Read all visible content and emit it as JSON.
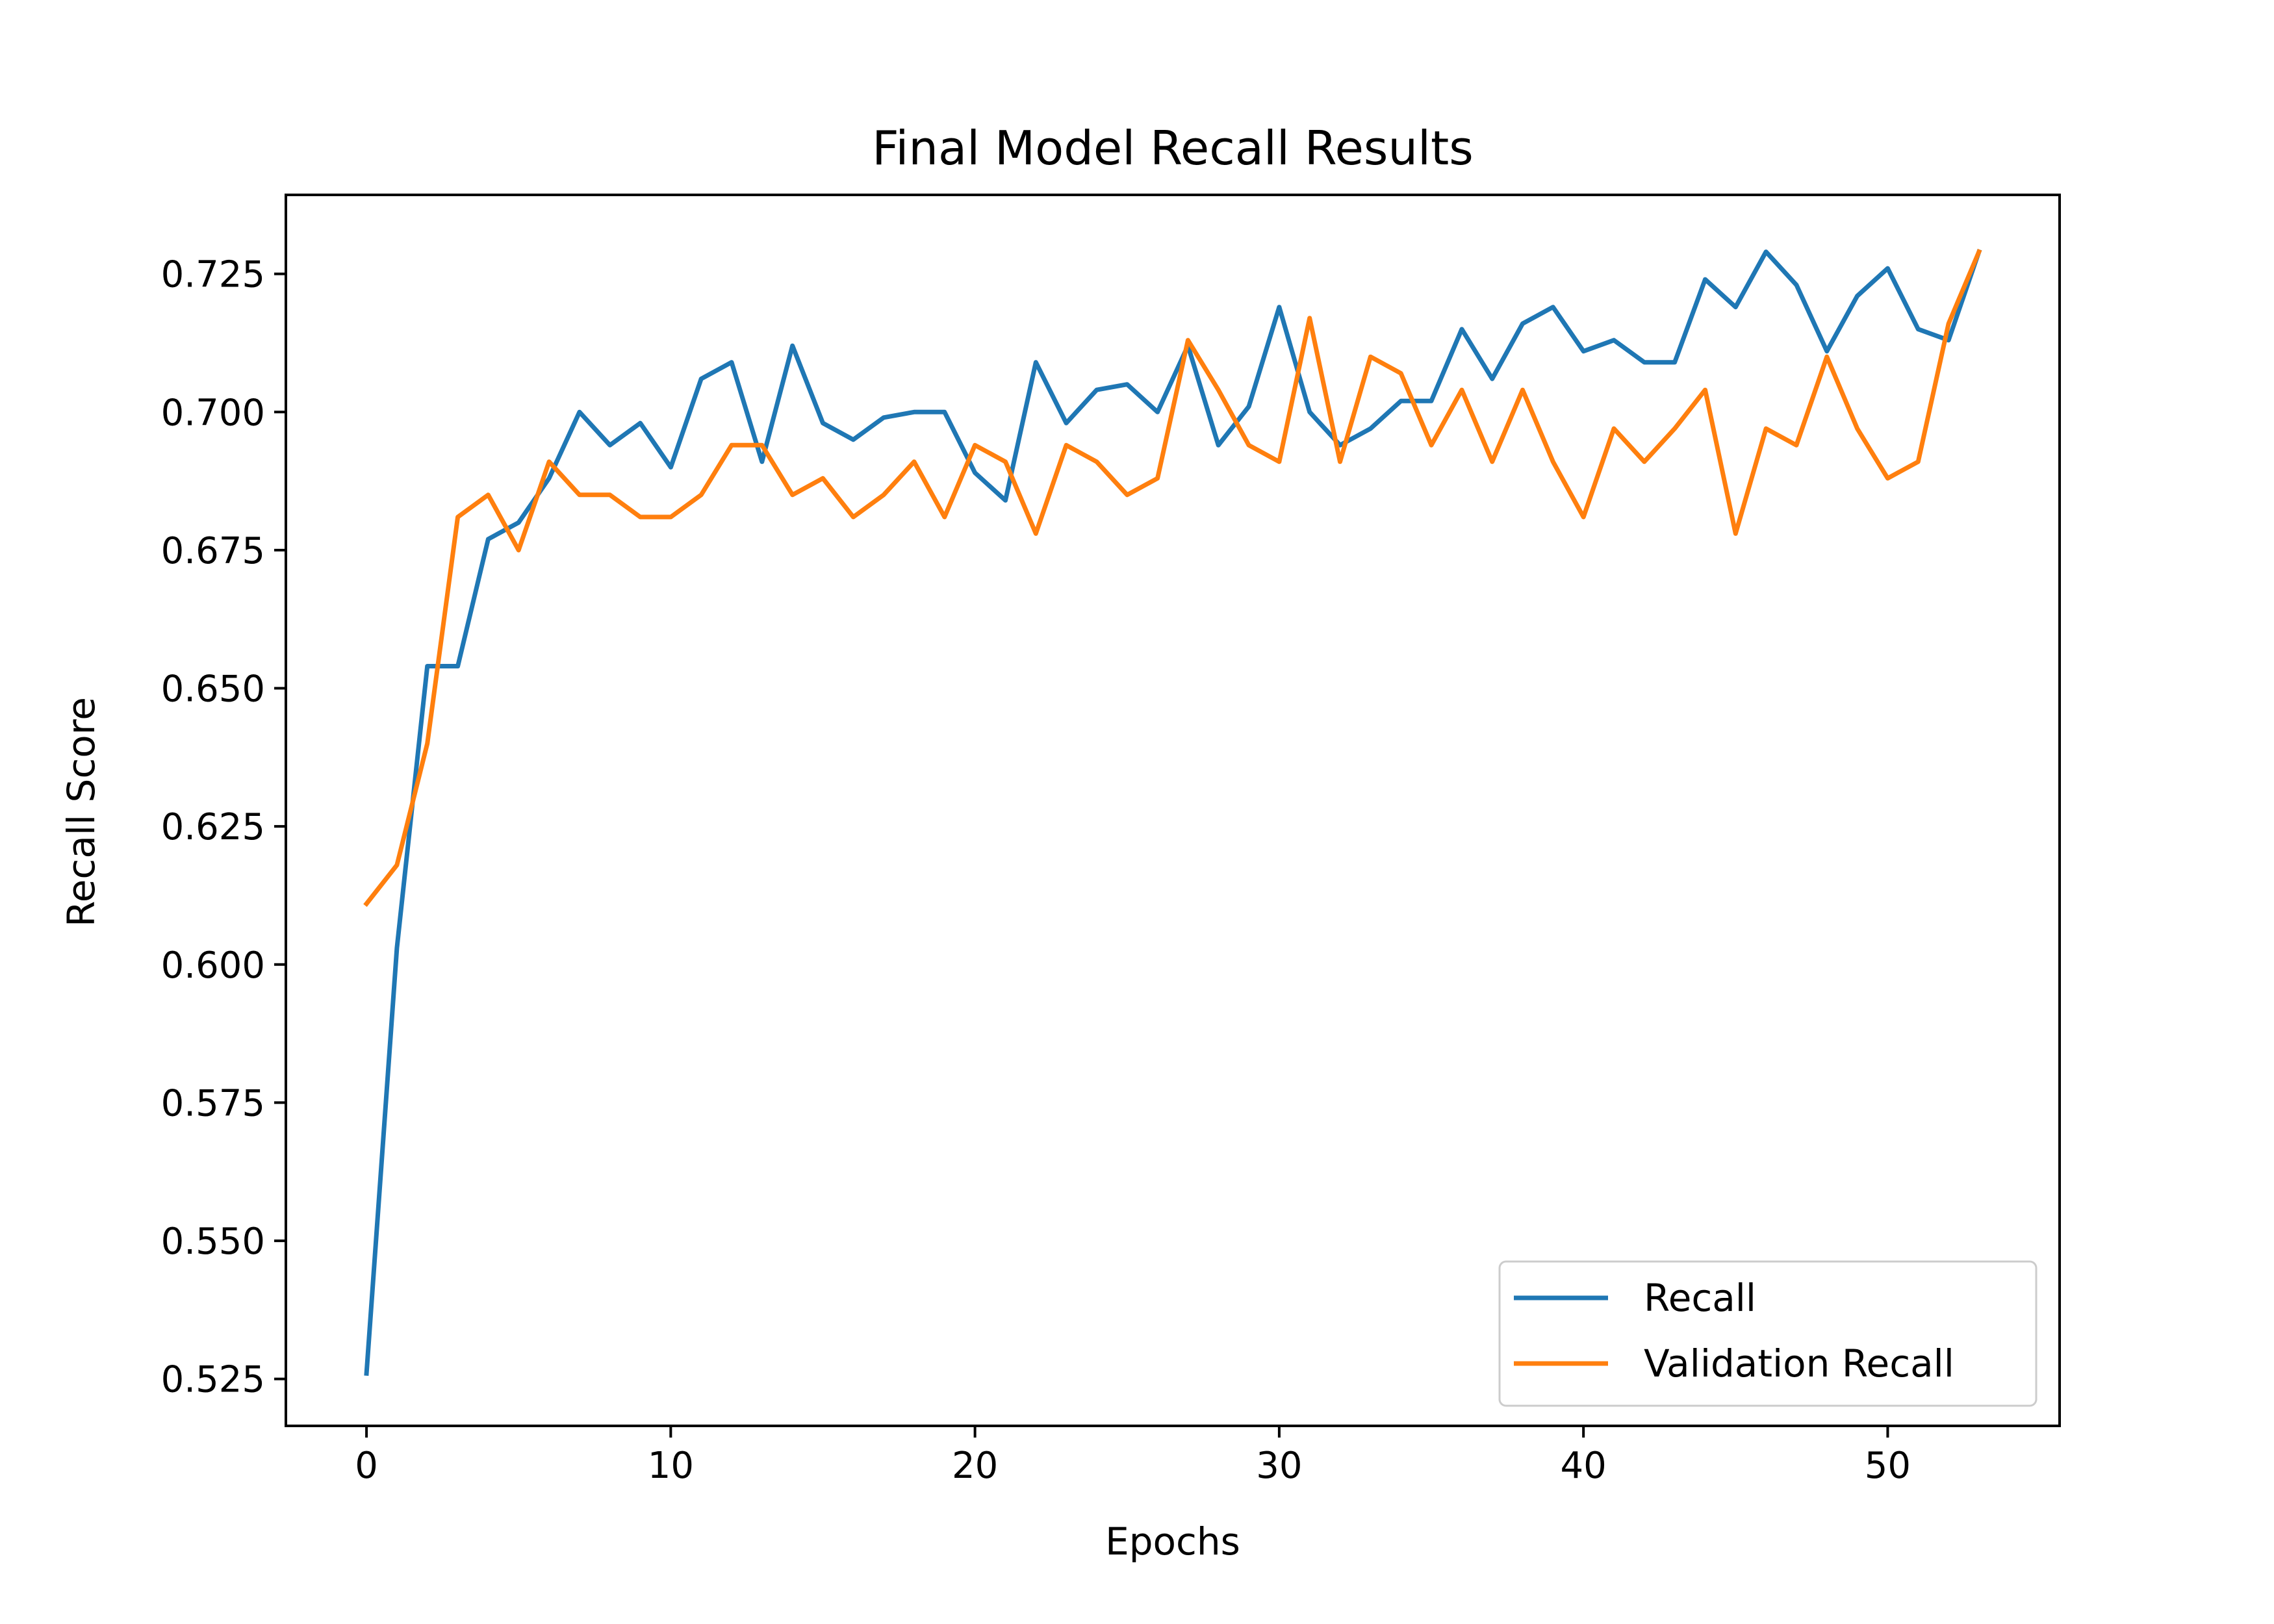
{
  "chart_data": {
    "type": "line",
    "title": "Final Model Recall Results",
    "xlabel": "Epochs",
    "ylabel": "Recall Score",
    "xlim": [
      -2.65,
      55.65
    ],
    "ylim": [
      0.5165,
      0.7393
    ],
    "xticks": [
      0,
      10,
      20,
      30,
      40,
      50
    ],
    "yticks": [
      0.525,
      0.55,
      0.575,
      0.6,
      0.625,
      0.65,
      0.675,
      0.7,
      0.725
    ],
    "ytick_labels": [
      "0.525",
      "0.550",
      "0.575",
      "0.600",
      "0.625",
      "0.650",
      "0.675",
      "0.700",
      "0.725"
    ],
    "grid": false,
    "legend_position": "lower-right",
    "x": [
      0,
      1,
      2,
      3,
      4,
      5,
      6,
      7,
      8,
      9,
      10,
      11,
      12,
      13,
      14,
      15,
      16,
      17,
      18,
      19,
      20,
      21,
      22,
      23,
      24,
      25,
      26,
      27,
      28,
      29,
      30,
      31,
      32,
      33,
      34,
      35,
      36,
      37,
      38,
      39,
      40,
      41,
      42,
      43,
      44,
      45,
      46,
      47,
      48,
      49,
      50,
      51,
      52,
      53
    ],
    "series": [
      {
        "name": "Recall",
        "color": "#1f77b4",
        "values": [
          0.526,
          0.603,
          0.654,
          0.654,
          0.677,
          0.68,
          0.688,
          0.7,
          0.694,
          0.698,
          0.69,
          0.706,
          0.709,
          0.691,
          0.712,
          0.698,
          0.695,
          0.699,
          0.7,
          0.7,
          0.689,
          0.684,
          0.709,
          0.698,
          0.704,
          0.705,
          0.7,
          0.712,
          0.694,
          0.701,
          0.719,
          0.7,
          0.694,
          0.697,
          0.702,
          0.702,
          0.715,
          0.706,
          0.716,
          0.719,
          0.711,
          0.713,
          0.709,
          0.709,
          0.724,
          0.719,
          0.729,
          0.723,
          0.711,
          0.721,
          0.726,
          0.715,
          0.713,
          0.729
        ]
      },
      {
        "name": "Validation Recall",
        "color": "#ff7f0e",
        "values": [
          0.611,
          0.618,
          0.64,
          0.681,
          0.685,
          0.675,
          0.691,
          0.685,
          0.685,
          0.681,
          0.681,
          0.685,
          0.694,
          0.694,
          0.685,
          0.688,
          0.681,
          0.685,
          0.691,
          0.681,
          0.694,
          0.691,
          0.678,
          0.694,
          0.691,
          0.685,
          0.688,
          0.713,
          0.704,
          0.694,
          0.691,
          0.717,
          0.691,
          0.71,
          0.707,
          0.694,
          0.704,
          0.691,
          0.704,
          0.691,
          0.681,
          0.697,
          0.691,
          0.697,
          0.704,
          0.678,
          0.697,
          0.694,
          0.71,
          0.697,
          0.688,
          0.691,
          0.716,
          0.729
        ]
      }
    ]
  }
}
